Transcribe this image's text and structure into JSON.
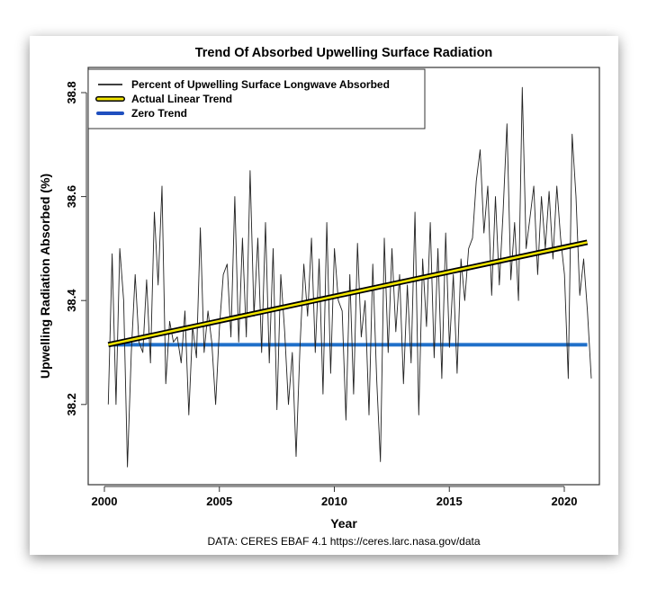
{
  "chart_data": {
    "type": "line",
    "title": "Trend Of Absorbed Upwelling Surface Radiation",
    "xlabel": "Year",
    "ylabel": "Upwelling Radiation Absorbed (%)",
    "source": "DATA: CERES EBAF 4.1 https://ceres.larc.nasa.gov/data",
    "xlim": [
      1999.3,
      2021.5
    ],
    "ylim": [
      38.04,
      38.86
    ],
    "x_ticks": [
      2000,
      2005,
      2010,
      2015,
      2020
    ],
    "x_tick_labels": [
      "2000",
      "2005",
      "2010",
      "2015",
      "2020"
    ],
    "y_ticks": [
      38.2,
      38.4,
      38.6,
      38.8
    ],
    "y_tick_labels": [
      "38.2",
      "38.4",
      "38.6",
      "38.8"
    ],
    "grid": false,
    "legend_position": "top-left",
    "legend": [
      {
        "label": "Percent of Upwelling Surface Longwave Absorbed",
        "color": "#000000"
      },
      {
        "label": "Actual Linear Trend",
        "color": "#f2e600"
      },
      {
        "label": "Zero Trend",
        "color": "#1f5fbf"
      }
    ],
    "series": [
      {
        "name": "Percent of Upwelling Surface Longwave Absorbed",
        "x_start": 2000.17,
        "x_step": 0.1667,
        "values": [
          38.2,
          38.49,
          38.2,
          38.5,
          38.4,
          38.08,
          38.3,
          38.45,
          38.32,
          38.3,
          38.44,
          38.28,
          38.57,
          38.43,
          38.62,
          38.24,
          38.36,
          38.32,
          38.33,
          38.28,
          38.38,
          38.18,
          38.35,
          38.29,
          38.54,
          38.3,
          38.38,
          38.32,
          38.2,
          38.35,
          38.45,
          38.47,
          38.33,
          38.6,
          38.32,
          38.52,
          38.33,
          38.65,
          38.37,
          38.52,
          38.3,
          38.55,
          38.28,
          38.5,
          38.19,
          38.45,
          38.34,
          38.2,
          38.3,
          38.1,
          38.31,
          38.47,
          38.37,
          38.52,
          38.3,
          38.48,
          38.22,
          38.55,
          38.26,
          38.5,
          38.4,
          38.38,
          38.17,
          38.45,
          38.22,
          38.51,
          38.33,
          38.4,
          38.18,
          38.47,
          38.25,
          38.09,
          38.52,
          38.3,
          38.5,
          38.34,
          38.45,
          38.24,
          38.43,
          38.28,
          38.57,
          38.18,
          38.48,
          38.35,
          38.55,
          38.29,
          38.5,
          38.25,
          38.53,
          38.31,
          38.45,
          38.26,
          38.48,
          38.4,
          38.5,
          38.52,
          38.63,
          38.69,
          38.53,
          38.62,
          38.41,
          38.6,
          38.43,
          38.57,
          38.74,
          38.44,
          38.55,
          38.4,
          38.81,
          38.5,
          38.56,
          38.62,
          38.45,
          38.6,
          38.5,
          38.61,
          38.48,
          38.62,
          38.52,
          38.45,
          38.25,
          38.72,
          38.6,
          38.41,
          38.48,
          38.38,
          38.25
        ]
      },
      {
        "name": "Actual Linear Trend",
        "x": [
          2000.17,
          2021.0
        ],
        "values": [
          38.315,
          38.512
        ]
      },
      {
        "name": "Zero Trend",
        "x": [
          2000.17,
          2021.0
        ],
        "values": [
          38.315,
          38.315
        ]
      }
    ]
  }
}
